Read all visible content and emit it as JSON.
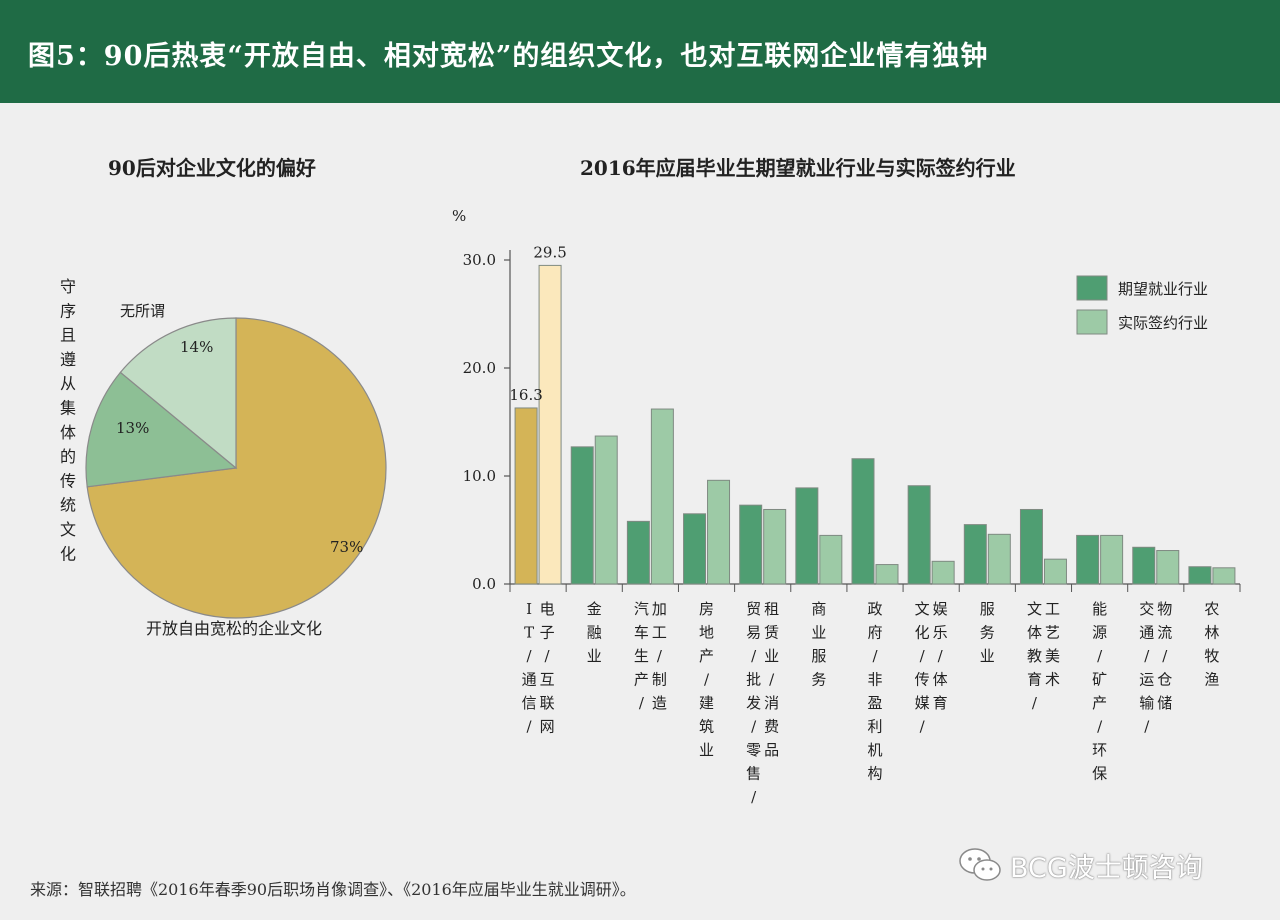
{
  "header": {
    "title": "图5：90后热衷“开放自由、相对宽松”的组织文化，也对互联网企业情有独钟"
  },
  "pie_title": "90后对企业文化的偏好",
  "bar_title": "2016年应届毕业生期望就业行业与实际签约行业",
  "source": "来源：智联招聘《2016年春季90后职场肖像调查》、《2016年应届毕业生就业调研》。",
  "watermark": "BCG波士顿咨询",
  "chart_data": [
    {
      "type": "pie",
      "title": "90后对企业文化的偏好",
      "slices": [
        {
          "label": "开放自由宽松的企业文化",
          "value": 73,
          "value_label": "73%",
          "color": "#d4b457"
        },
        {
          "label": "守序且遵从集体的传统文化",
          "value": 13,
          "value_label": "13%",
          "color": "#8dbf95"
        },
        {
          "label": "无所谓",
          "value": 14,
          "value_label": "14%",
          "color": "#c1dcc4"
        }
      ]
    },
    {
      "type": "bar",
      "title": "2016年应届毕业生期望就业行业与实际签约行业",
      "ylabel": "%",
      "ylim": [
        0,
        30
      ],
      "yticks": [
        "0.0",
        "10.0",
        "20.0",
        "30.0"
      ],
      "legend_position": "top-right",
      "categories": [
        "IT/通信/电子/互联网",
        "金融业",
        "汽车生产/加工/制造",
        "房地产/建筑业",
        "贸易/批发/零售/租赁业/消费品",
        "商业服务",
        "政府/非盈利机构",
        "文化/传媒/娱乐/体育",
        "服务业",
        "文体教育/工艺美术",
        "能源/矿产/环保",
        "交通/运输/物流/仓储",
        "农林牧渔"
      ],
      "series": [
        {
          "name": "期望就业行业",
          "color": "#4f9e72",
          "values": [
            16.3,
            12.7,
            5.8,
            6.5,
            7.3,
            8.9,
            11.6,
            9.1,
            5.5,
            6.9,
            4.5,
            3.4,
            1.6
          ]
        },
        {
          "name": "实际签约行业",
          "color": "#9dcaa6",
          "values": [
            29.5,
            13.7,
            16.2,
            9.6,
            6.9,
            4.5,
            1.8,
            2.1,
            4.6,
            2.3,
            4.5,
            3.1,
            1.5
          ]
        }
      ],
      "first_category_colors": {
        "期望就业行业": "#d4b457",
        "实际签约行业": "#fbe8bc"
      },
      "data_labels": [
        "16.3",
        "29.5"
      ]
    }
  ]
}
